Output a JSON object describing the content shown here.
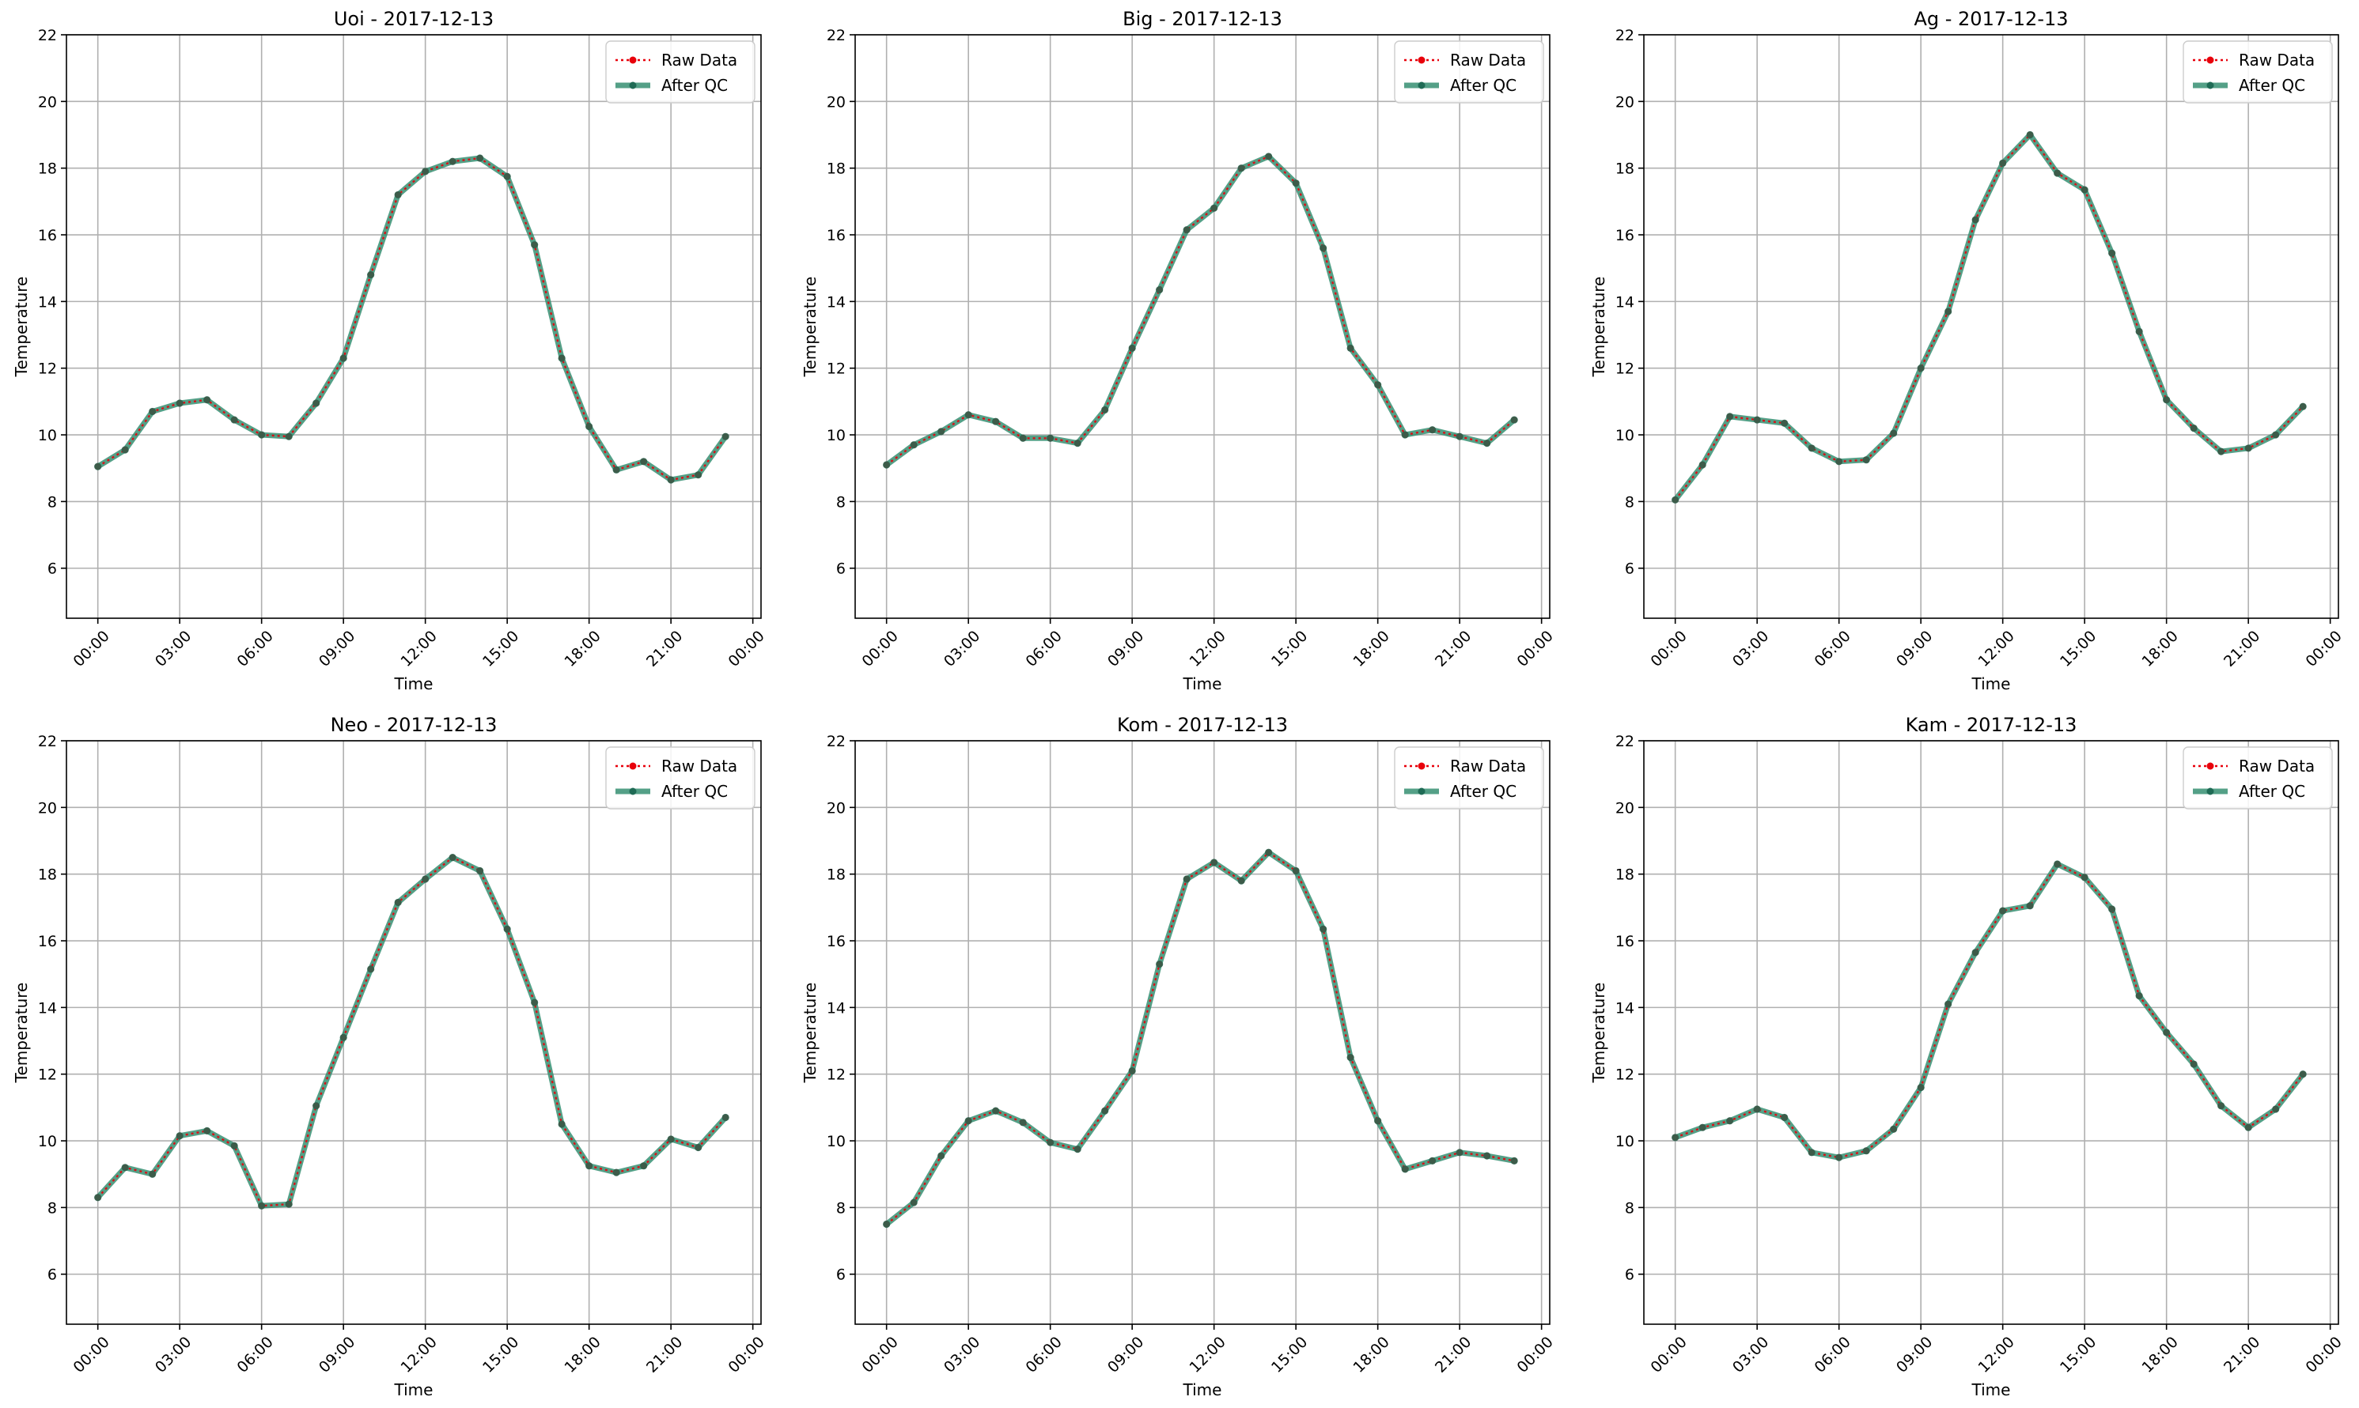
{
  "chart_data": [
    {
      "type": "line",
      "title": "Uoi - 2017-12-13",
      "xlabel": "Time",
      "ylabel": "Temperature",
      "x_tick_labels": [
        "00:00",
        "03:00",
        "06:00",
        "09:00",
        "12:00",
        "15:00",
        "18:00",
        "21:00",
        "00:00"
      ],
      "y_ticks": [
        6,
        8,
        10,
        12,
        14,
        16,
        18,
        20,
        22
      ],
      "ylim": [
        4.5,
        22
      ],
      "grid": true,
      "legend_position": "top-right",
      "x_hours": [
        0,
        1,
        2,
        3,
        4,
        5,
        6,
        7,
        8,
        9,
        10,
        11,
        12,
        13,
        14,
        15,
        16,
        17,
        18,
        19,
        20,
        21,
        22,
        23
      ],
      "series": [
        {
          "name": "Raw Data",
          "color": "#e8000b",
          "values": [
            9.05,
            9.55,
            10.7,
            10.95,
            11.05,
            10.45,
            10.0,
            9.95,
            10.95,
            12.3,
            14.8,
            17.2,
            17.9,
            18.2,
            18.3,
            17.75,
            15.7,
            12.3,
            10.25,
            8.95,
            9.2,
            8.65,
            8.8,
            9.95
          ]
        },
        {
          "name": "After QC",
          "color": "#2e8b6d",
          "values": [
            9.05,
            9.55,
            10.7,
            10.95,
            11.05,
            10.45,
            10.0,
            9.95,
            10.95,
            12.3,
            14.8,
            17.2,
            17.9,
            18.2,
            18.3,
            17.75,
            15.7,
            12.3,
            10.25,
            8.95,
            9.2,
            8.65,
            8.8,
            9.95
          ]
        }
      ]
    },
    {
      "type": "line",
      "title": "Big - 2017-12-13",
      "xlabel": "Time",
      "ylabel": "Temperature",
      "x_tick_labels": [
        "00:00",
        "03:00",
        "06:00",
        "09:00",
        "12:00",
        "15:00",
        "18:00",
        "21:00",
        "00:00"
      ],
      "y_ticks": [
        6,
        8,
        10,
        12,
        14,
        16,
        18,
        20,
        22
      ],
      "ylim": [
        4.5,
        22
      ],
      "grid": true,
      "legend_position": "top-right",
      "x_hours": [
        0,
        1,
        2,
        3,
        4,
        5,
        6,
        7,
        8,
        9,
        10,
        11,
        12,
        13,
        14,
        15,
        16,
        17,
        18,
        19,
        20,
        21,
        22,
        23
      ],
      "series": [
        {
          "name": "Raw Data",
          "color": "#e8000b",
          "values": [
            9.1,
            9.7,
            10.1,
            10.6,
            10.4,
            9.9,
            9.9,
            9.75,
            10.75,
            12.6,
            14.35,
            16.15,
            16.8,
            18.0,
            18.35,
            17.55,
            15.6,
            12.6,
            11.5,
            10.0,
            10.15,
            9.95,
            9.75,
            10.45
          ]
        },
        {
          "name": "After QC",
          "color": "#2e8b6d",
          "values": [
            9.1,
            9.7,
            10.1,
            10.6,
            10.4,
            9.9,
            9.9,
            9.75,
            10.75,
            12.6,
            14.35,
            16.15,
            16.8,
            18.0,
            18.35,
            17.55,
            15.6,
            12.6,
            11.5,
            10.0,
            10.15,
            9.95,
            9.75,
            10.45
          ]
        }
      ]
    },
    {
      "type": "line",
      "title": "Ag - 2017-12-13",
      "xlabel": "Time",
      "ylabel": "Temperature",
      "x_tick_labels": [
        "00:00",
        "03:00",
        "06:00",
        "09:00",
        "12:00",
        "15:00",
        "18:00",
        "21:00",
        "00:00"
      ],
      "y_ticks": [
        6,
        8,
        10,
        12,
        14,
        16,
        18,
        20,
        22
      ],
      "ylim": [
        4.5,
        22
      ],
      "grid": true,
      "legend_position": "top-right",
      "x_hours": [
        0,
        1,
        2,
        3,
        4,
        5,
        6,
        7,
        8,
        9,
        10,
        11,
        12,
        13,
        14,
        15,
        16,
        17,
        18,
        19,
        20,
        21,
        22,
        23
      ],
      "series": [
        {
          "name": "Raw Data",
          "color": "#e8000b",
          "values": [
            8.05,
            9.1,
            10.55,
            10.45,
            10.35,
            9.6,
            9.2,
            9.25,
            10.05,
            12.0,
            13.7,
            16.45,
            18.15,
            19.0,
            17.85,
            17.35,
            15.45,
            13.1,
            11.05,
            10.2,
            9.5,
            9.6,
            10.0,
            10.85
          ]
        },
        {
          "name": "After QC",
          "color": "#2e8b6d",
          "values": [
            8.05,
            9.1,
            10.55,
            10.45,
            10.35,
            9.6,
            9.2,
            9.25,
            10.05,
            12.0,
            13.7,
            16.45,
            18.15,
            19.0,
            17.85,
            17.35,
            15.45,
            13.1,
            11.05,
            10.2,
            9.5,
            9.6,
            10.0,
            10.85
          ]
        }
      ]
    },
    {
      "type": "line",
      "title": "Neo - 2017-12-13",
      "xlabel": "Time",
      "ylabel": "Temperature",
      "x_tick_labels": [
        "00:00",
        "03:00",
        "06:00",
        "09:00",
        "12:00",
        "15:00",
        "18:00",
        "21:00",
        "00:00"
      ],
      "y_ticks": [
        6,
        8,
        10,
        12,
        14,
        16,
        18,
        20,
        22
      ],
      "ylim": [
        4.5,
        22
      ],
      "grid": true,
      "legend_position": "top-right",
      "x_hours": [
        0,
        1,
        2,
        3,
        4,
        5,
        6,
        7,
        8,
        9,
        10,
        11,
        12,
        13,
        14,
        15,
        16,
        17,
        18,
        19,
        20,
        21,
        22,
        23
      ],
      "series": [
        {
          "name": "Raw Data",
          "color": "#e8000b",
          "values": [
            8.3,
            9.2,
            9.0,
            10.15,
            10.3,
            9.85,
            8.05,
            8.1,
            11.05,
            13.1,
            15.15,
            17.15,
            17.85,
            18.5,
            18.1,
            16.35,
            14.15,
            10.5,
            9.25,
            9.05,
            9.25,
            10.05,
            9.8,
            10.7
          ]
        },
        {
          "name": "After QC",
          "color": "#2e8b6d",
          "values": [
            8.3,
            9.2,
            9.0,
            10.15,
            10.3,
            9.85,
            8.05,
            8.1,
            11.05,
            13.1,
            15.15,
            17.15,
            17.85,
            18.5,
            18.1,
            16.35,
            14.15,
            10.5,
            9.25,
            9.05,
            9.25,
            10.05,
            9.8,
            10.7
          ]
        }
      ]
    },
    {
      "type": "line",
      "title": "Kom - 2017-12-13",
      "xlabel": "Time",
      "ylabel": "Temperature",
      "x_tick_labels": [
        "00:00",
        "03:00",
        "06:00",
        "09:00",
        "12:00",
        "15:00",
        "18:00",
        "21:00",
        "00:00"
      ],
      "y_ticks": [
        6,
        8,
        10,
        12,
        14,
        16,
        18,
        20,
        22
      ],
      "ylim": [
        4.5,
        22
      ],
      "grid": true,
      "legend_position": "top-right",
      "x_hours": [
        0,
        1,
        2,
        3,
        4,
        5,
        6,
        7,
        8,
        9,
        10,
        11,
        12,
        13,
        14,
        15,
        16,
        17,
        18,
        19,
        20,
        21,
        22,
        23
      ],
      "series": [
        {
          "name": "Raw Data",
          "color": "#e8000b",
          "values": [
            7.5,
            8.15,
            9.55,
            10.6,
            10.9,
            10.55,
            9.95,
            9.75,
            10.9,
            12.1,
            15.3,
            17.85,
            18.35,
            17.8,
            18.65,
            18.1,
            16.35,
            12.5,
            10.6,
            9.15,
            9.4,
            9.65,
            9.55,
            9.4
          ]
        },
        {
          "name": "After QC",
          "color": "#2e8b6d",
          "values": [
            7.5,
            8.15,
            9.55,
            10.6,
            10.9,
            10.55,
            9.95,
            9.75,
            10.9,
            12.1,
            15.3,
            17.85,
            18.35,
            17.8,
            18.65,
            18.1,
            16.35,
            12.5,
            10.6,
            9.15,
            9.4,
            9.65,
            9.55,
            9.4
          ]
        }
      ]
    },
    {
      "type": "line",
      "title": "Kam - 2017-12-13",
      "xlabel": "Time",
      "ylabel": "Temperature",
      "x_tick_labels": [
        "00:00",
        "03:00",
        "06:00",
        "09:00",
        "12:00",
        "15:00",
        "18:00",
        "21:00",
        "00:00"
      ],
      "y_ticks": [
        6,
        8,
        10,
        12,
        14,
        16,
        18,
        20,
        22
      ],
      "ylim": [
        4.5,
        22
      ],
      "grid": true,
      "legend_position": "top-right",
      "x_hours": [
        0,
        1,
        2,
        3,
        4,
        5,
        6,
        7,
        8,
        9,
        10,
        11,
        12,
        13,
        14,
        15,
        16,
        17,
        18,
        19,
        20,
        21,
        22,
        23
      ],
      "series": [
        {
          "name": "Raw Data",
          "color": "#e8000b",
          "values": [
            10.1,
            10.4,
            10.6,
            10.95,
            10.7,
            9.65,
            9.5,
            9.7,
            10.35,
            11.6,
            14.1,
            15.65,
            16.9,
            17.05,
            18.3,
            17.9,
            16.95,
            14.35,
            13.25,
            12.3,
            11.05,
            10.4,
            10.95,
            12.0
          ]
        },
        {
          "name": "After QC",
          "color": "#2e8b6d",
          "values": [
            10.1,
            10.4,
            10.6,
            10.95,
            10.7,
            9.65,
            9.5,
            9.7,
            10.35,
            11.6,
            14.1,
            15.65,
            16.9,
            17.05,
            18.3,
            17.9,
            16.95,
            14.35,
            13.25,
            12.3,
            11.05,
            10.4,
            10.95,
            12.0
          ]
        }
      ]
    }
  ]
}
